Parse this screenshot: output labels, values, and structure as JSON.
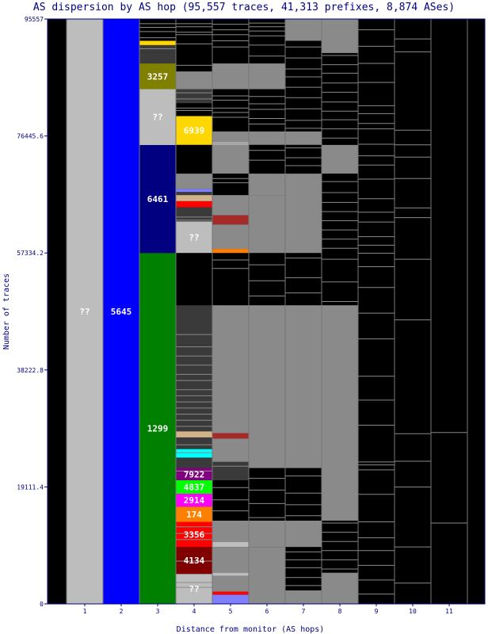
{
  "chart_data": {
    "type": "bar",
    "title": "AS dispersion by AS hop (95,557 traces, 41,313 prefixes, 8,874 ASes)",
    "xlabel": "Distance from monitor (AS hops)",
    "ylabel": "Number of traces",
    "ylim": [
      0,
      95557
    ],
    "yticks": [
      "0",
      "19111.4",
      "38222.8",
      "57334.2",
      "76445.6",
      "95557"
    ],
    "xticks": [
      "1",
      "2",
      "3",
      "4",
      "5",
      "6",
      "7",
      "8",
      "9",
      "10",
      "11"
    ],
    "colors": {
      "unknown": "#bdbdbd",
      "dark": "#3a3a3a",
      "gray": "#8a8a8a",
      "black": "#000000",
      "blue": "#0000ff",
      "navy": "#000080",
      "green": "#008000",
      "olive": "#808000",
      "gold": "#ffd700",
      "purple": "#800080",
      "lime": "#00ff00",
      "magenta": "#ff00ff",
      "orange": "#ff8000",
      "red": "#ff0000",
      "maroon": "#800000",
      "cyan": "#00ffff",
      "tan": "#d2b48c",
      "lavender": "#8080ff",
      "brown": "#a52a2a"
    },
    "columns": [
      {
        "hop": "1",
        "segments": [
          {
            "from": 0,
            "to": 95557,
            "color": "unknown",
            "label": "??"
          }
        ]
      },
      {
        "hop": "2",
        "segments": [
          {
            "from": 0,
            "to": 95557,
            "color": "blue",
            "label": "5645"
          }
        ]
      },
      {
        "hop": "3",
        "segments": [
          {
            "from": 0,
            "to": 57334,
            "color": "green",
            "label": "1299"
          },
          {
            "from": 57334,
            "to": 74970,
            "color": "navy",
            "label": "6461"
          },
          {
            "from": 74970,
            "to": 84100,
            "color": "unknown",
            "label": "??"
          },
          {
            "from": 84100,
            "to": 88300,
            "color": "olive",
            "label": "3257"
          },
          {
            "from": 88300,
            "to": 90000,
            "color": "dark"
          },
          {
            "from": 90000,
            "to": 91300,
            "color": "dark"
          },
          {
            "from": 91300,
            "to": 92000,
            "color": "gold"
          },
          {
            "from": 92000,
            "to": 95557,
            "color": "black"
          }
        ]
      },
      {
        "hop": "4",
        "segments": [
          {
            "from": 0,
            "to": 4900,
            "color": "unknown",
            "label": "??"
          },
          {
            "from": 4900,
            "to": 9300,
            "color": "maroon",
            "label": "4134"
          },
          {
            "from": 9300,
            "to": 13400,
            "color": "red",
            "label": "3356"
          },
          {
            "from": 13400,
            "to": 15900,
            "color": "orange",
            "label": "174"
          },
          {
            "from": 15900,
            "to": 18000,
            "color": "magenta",
            "label": "2914"
          },
          {
            "from": 18000,
            "to": 20200,
            "color": "lime",
            "label": "4837"
          },
          {
            "from": 20200,
            "to": 22200,
            "color": "purple",
            "label": "7922"
          },
          {
            "from": 22200,
            "to": 23900,
            "color": "dark"
          },
          {
            "from": 23900,
            "to": 25300,
            "color": "cyan"
          },
          {
            "from": 25300,
            "to": 27200,
            "color": "dark"
          },
          {
            "from": 27200,
            "to": 28200,
            "color": "tan"
          },
          {
            "from": 28200,
            "to": 48800,
            "color": "dark"
          },
          {
            "from": 48800,
            "to": 57334,
            "color": "black"
          },
          {
            "from": 57334,
            "to": 62500,
            "color": "unknown",
            "label": "??"
          },
          {
            "from": 62500,
            "to": 64800,
            "color": "dark"
          },
          {
            "from": 64800,
            "to": 65800,
            "color": "red"
          },
          {
            "from": 65800,
            "to": 66800,
            "color": "tan"
          },
          {
            "from": 66800,
            "to": 67300,
            "color": "dark"
          },
          {
            "from": 67300,
            "to": 67800,
            "color": "lavender"
          },
          {
            "from": 67800,
            "to": 70300,
            "color": "gray"
          },
          {
            "from": 70300,
            "to": 75000,
            "color": "black"
          },
          {
            "from": 75000,
            "to": 79700,
            "color": "gold",
            "label": "6939"
          },
          {
            "from": 79700,
            "to": 81800,
            "color": "black"
          },
          {
            "from": 81800,
            "to": 84100,
            "color": "dark"
          },
          {
            "from": 84100,
            "to": 87000,
            "color": "gray"
          },
          {
            "from": 87000,
            "to": 95557,
            "color": "black"
          }
        ]
      },
      {
        "hop": "5",
        "segments": [
          {
            "from": 0,
            "to": 1500,
            "color": "lavender"
          },
          {
            "from": 1500,
            "to": 2000,
            "color": "red"
          },
          {
            "from": 2000,
            "to": 4600,
            "color": "gray"
          },
          {
            "from": 4600,
            "to": 5100,
            "color": "unknown"
          },
          {
            "from": 5100,
            "to": 9300,
            "color": "gray"
          },
          {
            "from": 9300,
            "to": 10100,
            "color": "unknown"
          },
          {
            "from": 10100,
            "to": 13600,
            "color": "gray"
          },
          {
            "from": 13600,
            "to": 20200,
            "color": "black"
          },
          {
            "from": 20200,
            "to": 23200,
            "color": "dark"
          },
          {
            "from": 23200,
            "to": 27000,
            "color": "gray"
          },
          {
            "from": 27000,
            "to": 27900,
            "color": "brown"
          },
          {
            "from": 27900,
            "to": 48800,
            "color": "gray"
          },
          {
            "from": 48800,
            "to": 57334,
            "color": "black"
          },
          {
            "from": 57334,
            "to": 58000,
            "color": "orange"
          },
          {
            "from": 58000,
            "to": 62000,
            "color": "gray"
          },
          {
            "from": 62000,
            "to": 63500,
            "color": "brown"
          },
          {
            "from": 63500,
            "to": 66800,
            "color": "gray"
          },
          {
            "from": 66800,
            "to": 70300,
            "color": "black"
          },
          {
            "from": 70300,
            "to": 75000,
            "color": "gray"
          },
          {
            "from": 75000,
            "to": 75500,
            "color": "unknown"
          },
          {
            "from": 75500,
            "to": 77200,
            "color": "gray"
          },
          {
            "from": 77200,
            "to": 84100,
            "color": "black"
          },
          {
            "from": 84100,
            "to": 88300,
            "color": "gray"
          },
          {
            "from": 88300,
            "to": 95557,
            "color": "black"
          }
        ]
      },
      {
        "hop": "6",
        "segments": [
          {
            "from": 0,
            "to": 2200,
            "color": "gray"
          },
          {
            "from": 2200,
            "to": 9300,
            "color": "gray"
          },
          {
            "from": 9300,
            "to": 13600,
            "color": "gray"
          },
          {
            "from": 13600,
            "to": 22200,
            "color": "black"
          },
          {
            "from": 22200,
            "to": 48800,
            "color": "gray"
          },
          {
            "from": 48800,
            "to": 57334,
            "color": "black"
          },
          {
            "from": 57334,
            "to": 66800,
            "color": "gray"
          },
          {
            "from": 66800,
            "to": 70300,
            "color": "gray"
          },
          {
            "from": 70300,
            "to": 75000,
            "color": "black"
          },
          {
            "from": 75000,
            "to": 77200,
            "color": "gray"
          },
          {
            "from": 77200,
            "to": 84100,
            "color": "black"
          },
          {
            "from": 84100,
            "to": 88300,
            "color": "gray"
          },
          {
            "from": 88300,
            "to": 95557,
            "color": "black"
          }
        ]
      },
      {
        "hop": "7",
        "segments": [
          {
            "from": 0,
            "to": 2200,
            "color": "gray"
          },
          {
            "from": 2200,
            "to": 9300,
            "color": "black"
          },
          {
            "from": 9300,
            "to": 13600,
            "color": "gray"
          },
          {
            "from": 13600,
            "to": 22200,
            "color": "black"
          },
          {
            "from": 22200,
            "to": 48800,
            "color": "gray"
          },
          {
            "from": 48800,
            "to": 57334,
            "color": "black"
          },
          {
            "from": 57334,
            "to": 70300,
            "color": "gray"
          },
          {
            "from": 70300,
            "to": 75000,
            "color": "black"
          },
          {
            "from": 75000,
            "to": 77200,
            "color": "gray"
          },
          {
            "from": 77200,
            "to": 92000,
            "color": "black"
          },
          {
            "from": 92000,
            "to": 95557,
            "color": "gray"
          }
        ]
      },
      {
        "hop": "8",
        "segments": [
          {
            "from": 0,
            "to": 5100,
            "color": "gray"
          },
          {
            "from": 5100,
            "to": 13600,
            "color": "black"
          },
          {
            "from": 13600,
            "to": 48800,
            "color": "gray"
          },
          {
            "from": 48800,
            "to": 70300,
            "color": "black"
          },
          {
            "from": 70300,
            "to": 75000,
            "color": "gray"
          },
          {
            "from": 75000,
            "to": 90000,
            "color": "black"
          },
          {
            "from": 90000,
            "to": 95557,
            "color": "gray"
          }
        ]
      },
      {
        "hop": "9",
        "segments": [
          {
            "from": 0,
            "to": 95557,
            "color": "black"
          }
        ]
      },
      {
        "hop": "10",
        "segments": [
          {
            "from": 0,
            "to": 95557,
            "color": "black"
          }
        ]
      },
      {
        "hop": "11",
        "segments": [
          {
            "from": 0,
            "to": 95557,
            "color": "black"
          }
        ]
      }
    ],
    "thin_lines": [
      {
        "hop": "3",
        "values": [
          92500,
          93500,
          94200,
          94800,
          90700
        ]
      },
      {
        "hop": "4",
        "values": [
          93000,
          93400,
          94300,
          94800,
          91500,
          88000,
          86500,
          85500,
          83500,
          82500,
          81000,
          80600,
          62700,
          63200,
          44000,
          42000,
          40500,
          39000,
          37500,
          36500,
          35000,
          34000,
          33000,
          32000,
          31000,
          30000,
          29000,
          24700,
          26000,
          21700,
          10500,
          11500,
          12600,
          7000,
          3500,
          2700
        ]
      },
      {
        "hop": "5",
        "values": [
          94700,
          93800,
          93000,
          92000,
          91000,
          88000,
          86000,
          85500,
          83000,
          82300,
          81000,
          80300,
          79500,
          75300,
          69500,
          68800,
          65300,
          64800,
          60300,
          59000,
          56200,
          54800,
          47000,
          45500,
          43500,
          41500,
          40000,
          38000,
          37000,
          35800,
          34300,
          33000,
          31800,
          30300,
          29300,
          28300,
          26500,
          25700,
          24400,
          22500,
          19000,
          17000,
          15200,
          12300,
          11600,
          8000,
          6800,
          3300,
          2600
        ]
      },
      {
        "hop": "6",
        "values": [
          94900,
          94300,
          93600,
          92800,
          91300,
          89500,
          87800,
          86500,
          85000,
          82900,
          81700,
          80800,
          79300,
          78400,
          76200,
          74100,
          72500,
          69600,
          68700,
          67600,
          66200,
          63900,
          61200,
          59500,
          55400,
          52800,
          50300,
          46500,
          44600,
          42300,
          40300,
          39200,
          37700,
          36100,
          34800,
          33800,
          32300,
          31400,
          30500,
          28900,
          27700,
          26800,
          25200,
          24300,
          23700,
          20500,
          18600,
          16400,
          14100,
          12800,
          11300,
          10600,
          8700,
          7500,
          6300,
          4000,
          3100,
          1600
        ]
      },
      {
        "hop": "7",
        "values": [
          94100,
          92400,
          91000,
          89200,
          87400,
          86100,
          84400,
          82700,
          80900,
          79000,
          77700,
          76400,
          74500,
          72900,
          71600,
          69200,
          67900,
          66500,
          65200,
          63600,
          62000,
          60700,
          59200,
          58200,
          56500,
          53300,
          50800,
          47800,
          46800,
          45300,
          44100,
          43100,
          42000,
          40900,
          39600,
          38200,
          36900,
          35500,
          34200,
          32700,
          31100,
          30000,
          28600,
          27100,
          25800,
          24700,
          23500,
          20900,
          18100,
          16200,
          14400,
          12200,
          11000,
          9800,
          8500,
          7200,
          5900,
          4300,
          3000,
          1900,
          900
        ]
      },
      {
        "hop": "8",
        "values": [
          93700,
          92200,
          91300,
          89600,
          88100,
          86700,
          85100,
          83600,
          82000,
          80500,
          79100,
          77600,
          76100,
          73900,
          72400,
          71000,
          69000,
          67200,
          65600,
          64100,
          62600,
          61100,
          59600,
          58100,
          56300,
          52600,
          49400,
          47300,
          45700,
          44200,
          42700,
          41200,
          39700,
          38200,
          36700,
          35200,
          33700,
          32200,
          30700,
          29200,
          27700,
          26200,
          24700,
          23200,
          21500,
          19400,
          17700,
          15600,
          13200,
          11700,
          10200,
          8700,
          7200,
          5700,
          4200,
          2700,
          1200
        ]
      },
      {
        "hop": "9",
        "values": [
          93800,
          91100,
          88300,
          85200,
          81400,
          80100,
          78500,
          77600,
          75100,
          73200,
          71700,
          69400,
          66200,
          64000,
          62400,
          60000,
          58600,
          57300,
          55100,
          51700,
          47500,
          43300,
          37200,
          33300,
          29200,
          23200,
          22700,
          21900,
          17900,
          13400,
          10800,
          8700,
          6300,
          3900,
          1600
        ]
      },
      {
        "hop": "10",
        "values": [
          92300,
          90200,
          77400,
          75000,
          73000,
          69500,
          64700,
          63100,
          56300,
          46400,
          27800,
          23300,
          19100,
          9300,
          3400
        ]
      },
      {
        "hop": "11",
        "values": [
          28000,
          13200
        ]
      }
    ]
  }
}
